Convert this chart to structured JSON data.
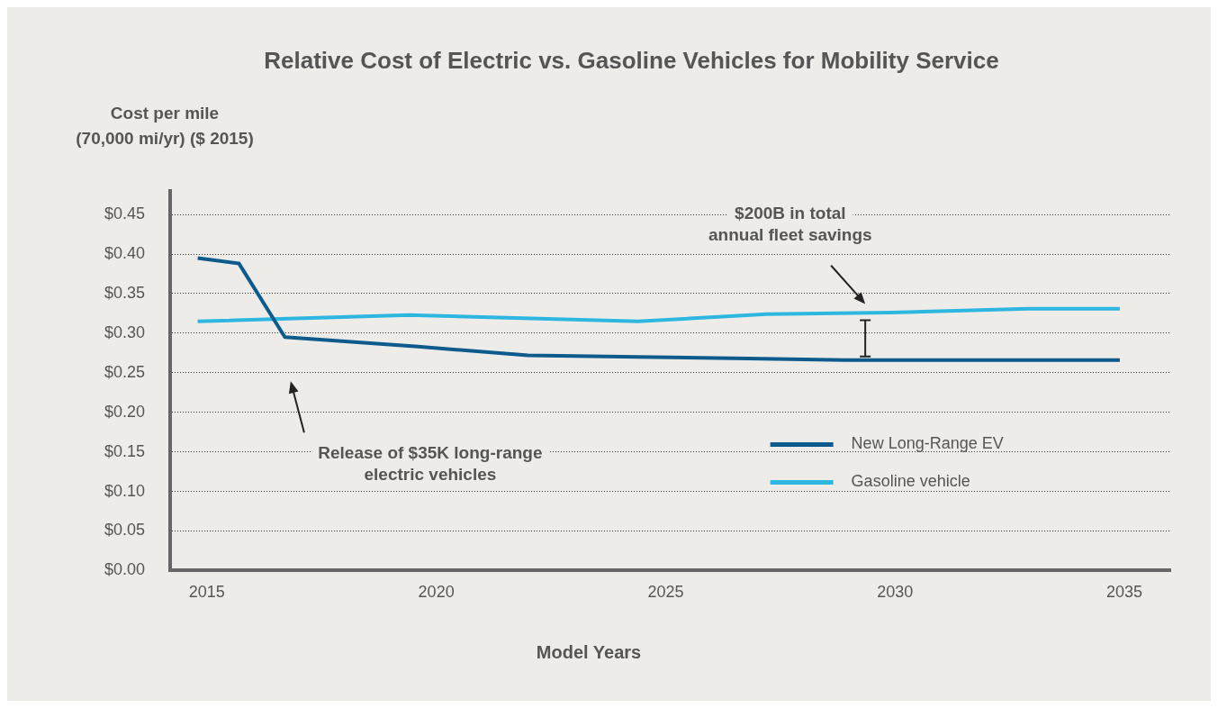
{
  "chart_data": {
    "type": "line",
    "title": "Relative Cost of Electric vs. Gasoline Vehicles for Mobility Service",
    "ylabel": "Cost per mile\n(70,000 mi/yr) ($ 2015)",
    "xlabel": "Model Years",
    "series": [
      {
        "name": "New Long-Range EV",
        "color": "#0d5a8c",
        "x": [
          2014.8,
          2015.7,
          2016.7,
          2019.6,
          2022.0,
          2024.4,
          2026.8,
          2028.9,
          2034.9
        ],
        "values": [
          0.395,
          0.388,
          0.295,
          0.283,
          0.272,
          0.27,
          0.268,
          0.266,
          0.266
        ]
      },
      {
        "name": "Gasoline vehicle",
        "color": "#2db6e0",
        "x": [
          2014.8,
          2019.4,
          2024.4,
          2027.2,
          2029.9,
          2032.9,
          2034.9
        ],
        "values": [
          0.315,
          0.323,
          0.315,
          0.324,
          0.326,
          0.331,
          0.331
        ]
      }
    ],
    "xlim": [
      2014.2,
      2036
    ],
    "xticks": [
      2015,
      2020,
      2025,
      2030,
      2035
    ],
    "ylim": [
      0,
      0.48
    ],
    "yticks": [
      {
        "value": 0,
        "label": "$0.00"
      },
      {
        "value": 0.05,
        "label": "$0.05"
      },
      {
        "value": 0.1,
        "label": "$0.10"
      },
      {
        "value": 0.15,
        "label": "$0.15"
      },
      {
        "value": 0.2,
        "label": "$0.20"
      },
      {
        "value": 0.25,
        "label": "$0.25"
      },
      {
        "value": 0.3,
        "label": "$0.30"
      },
      {
        "value": 0.35,
        "label": "$0.35"
      },
      {
        "value": 0.4,
        "label": "$0.40"
      },
      {
        "value": 0.45,
        "label": "$0.45"
      }
    ],
    "grid": "y",
    "legend": "bottom right",
    "marker": "none",
    "line_style": "solid",
    "annotations": [
      "$200B in total\nannual fleet savings",
      "Release of $35K long-range\nelectric vehicles"
    ]
  }
}
